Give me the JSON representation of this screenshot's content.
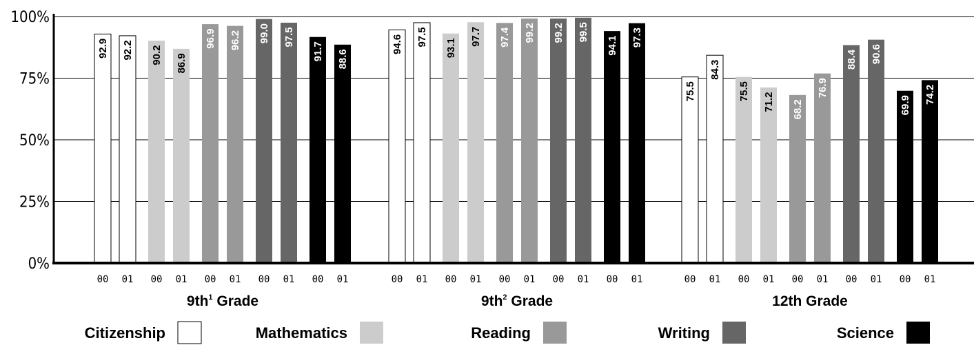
{
  "chart_data": {
    "type": "bar",
    "ylim": [
      0,
      100
    ],
    "yticks": [
      "0%",
      "25%",
      "50%",
      "75%",
      "100%"
    ],
    "grid": true,
    "legend_position": "bottom",
    "period_labels": [
      "00",
      "01"
    ],
    "groups": [
      {
        "label": "9th",
        "sup": "1",
        "suffix": " Grade"
      },
      {
        "label": "9th",
        "sup": "2",
        "suffix": " Grade"
      },
      {
        "label": "12th Grade",
        "sup": "",
        "suffix": ""
      }
    ],
    "series": [
      {
        "name": "Citizenship",
        "color": "#ffffff",
        "values": [
          [
            92.9,
            92.2
          ],
          [
            94.6,
            97.5
          ],
          [
            75.5,
            84.3
          ]
        ]
      },
      {
        "name": "Mathematics",
        "color": "#cccccc",
        "values": [
          [
            90.2,
            86.9
          ],
          [
            93.1,
            97.7
          ],
          [
            75.5,
            71.2
          ]
        ]
      },
      {
        "name": "Reading",
        "color": "#999999",
        "values": [
          [
            96.9,
            96.2
          ],
          [
            97.4,
            99.2
          ],
          [
            68.2,
            76.9
          ]
        ]
      },
      {
        "name": "Writing",
        "color": "#666666",
        "values": [
          [
            99.0,
            97.5
          ],
          [
            99.2,
            99.5
          ],
          [
            88.4,
            90.6
          ]
        ]
      },
      {
        "name": "Science",
        "color": "#000000",
        "values": [
          [
            91.7,
            88.6
          ],
          [
            94.1,
            97.3
          ],
          [
            69.9,
            74.2
          ]
        ]
      }
    ]
  }
}
